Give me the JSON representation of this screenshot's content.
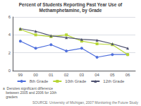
{
  "chart_data": {
    "type": "line",
    "title": "Percent of Students Reporting Past Year Use of\nMethamphetamine, by Grade",
    "categories": [
      "99",
      "00",
      "01",
      "02",
      "03",
      "04",
      "05",
      "06"
    ],
    "series": [
      {
        "name": "8th Grade",
        "marker": "circle",
        "values": [
          3.3,
          2.5,
          2.9,
          2.2,
          2.5,
          1.5,
          1.8,
          1.8
        ]
      },
      {
        "name": "10th Grade",
        "marker": "square",
        "values": [
          4.6,
          4.0,
          3.8,
          4.0,
          3.3,
          3.0,
          2.9,
          1.8
        ]
      },
      {
        "name": "12th Grade",
        "marker": "triangle",
        "values": [
          4.7,
          4.4,
          3.9,
          3.7,
          3.5,
          3.4,
          3.0,
          2.5
        ]
      }
    ],
    "ylim": [
      0,
      6
    ],
    "yticks": [
      0,
      2,
      4,
      6
    ],
    "grid": true,
    "legend": "bottom",
    "annotations": [
      "a  Denotes significant difference\n   between 2005 and 2006 for 10th\n   graders",
      "SOURCE: University of Michigan, 2007 Monitoring the Future Study"
    ]
  }
}
